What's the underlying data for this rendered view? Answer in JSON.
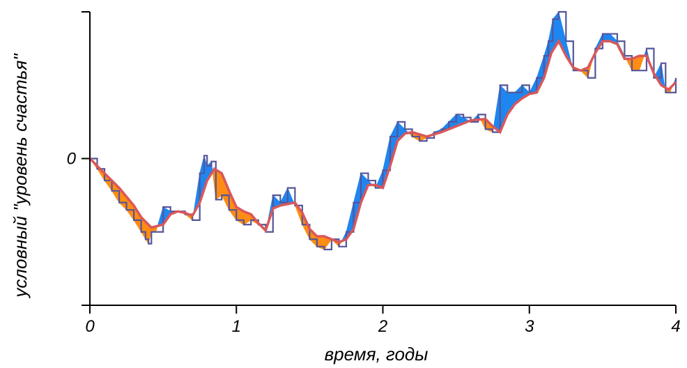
{
  "chart_data": {
    "type": "area",
    "xlabel": "время, годы",
    "ylabel": "условный \"уровень счастья\"",
    "x_ticks": [
      0,
      1,
      2,
      3,
      4
    ],
    "y_ticks": [
      0
    ],
    "xlim": [
      0,
      4
    ],
    "ylim": [
      -1,
      1
    ],
    "grid": false,
    "colors": {
      "above": "#1f86f0",
      "below": "#ff8c14",
      "raw_line": "#555599",
      "smooth_line": "#d9575a",
      "axis": "#000000"
    },
    "series": [
      {
        "x": [
          0,
          0.05,
          0.1,
          0.15,
          0.2,
          0.25,
          0.3,
          0.35,
          0.38,
          0.4,
          0.42,
          0.45,
          0.5,
          0.55,
          0.6,
          0.65,
          0.7,
          0.75,
          0.78,
          0.8,
          0.83,
          0.86,
          0.9,
          0.95,
          1.0,
          1.05,
          1.1,
          1.15,
          1.2,
          1.25,
          1.3,
          1.35,
          1.4,
          1.45,
          1.5,
          1.55,
          1.6,
          1.65,
          1.7,
          1.75,
          1.8,
          1.85,
          1.9,
          1.95,
          2.0,
          2.05,
          2.1,
          2.15,
          2.2,
          2.25,
          2.3,
          2.35,
          2.4,
          2.45,
          2.5,
          2.55,
          2.6,
          2.65,
          2.7,
          2.75,
          2.8,
          2.85,
          2.9,
          2.95,
          3.0,
          3.05,
          3.1,
          3.13,
          3.16,
          3.2,
          3.25,
          3.3,
          3.35,
          3.4,
          3.45,
          3.5,
          3.55,
          3.6,
          3.65,
          3.7,
          3.75,
          3.8,
          3.85,
          3.9,
          3.93,
          3.96,
          4.0
        ],
        "y": [
          0.0,
          -0.07,
          -0.15,
          -0.22,
          -0.3,
          -0.35,
          -0.42,
          -0.5,
          -0.55,
          -0.58,
          -0.5,
          -0.5,
          -0.33,
          -0.36,
          -0.36,
          -0.38,
          -0.42,
          -0.1,
          0.02,
          -0.05,
          -0.02,
          -0.28,
          -0.25,
          -0.35,
          -0.42,
          -0.45,
          -0.42,
          -0.45,
          -0.5,
          -0.25,
          -0.3,
          -0.2,
          -0.32,
          -0.45,
          -0.55,
          -0.6,
          -0.62,
          -0.55,
          -0.6,
          -0.5,
          -0.3,
          -0.1,
          -0.15,
          -0.2,
          -0.08,
          0.15,
          0.25,
          0.2,
          0.15,
          0.12,
          0.14,
          0.18,
          0.2,
          0.25,
          0.3,
          0.28,
          0.25,
          0.3,
          0.2,
          0.18,
          0.5,
          0.45,
          0.45,
          0.5,
          0.45,
          0.55,
          0.7,
          0.8,
          0.95,
          1.0,
          0.8,
          0.6,
          0.6,
          0.55,
          0.75,
          0.85,
          0.85,
          0.8,
          0.7,
          0.6,
          0.6,
          0.75,
          0.55,
          0.65,
          0.45,
          0.45,
          0.55
        ]
      },
      {
        "x": [
          0,
          0.1,
          0.2,
          0.3,
          0.35,
          0.42,
          0.5,
          0.55,
          0.6,
          0.65,
          0.7,
          0.75,
          0.8,
          0.85,
          0.9,
          0.95,
          1.0,
          1.05,
          1.1,
          1.15,
          1.2,
          1.25,
          1.3,
          1.35,
          1.4,
          1.45,
          1.5,
          1.55,
          1.6,
          1.65,
          1.7,
          1.75,
          1.8,
          1.85,
          1.9,
          1.95,
          2.0,
          2.05,
          2.1,
          2.15,
          2.2,
          2.3,
          2.4,
          2.5,
          2.6,
          2.7,
          2.75,
          2.8,
          2.85,
          2.9,
          2.95,
          3.0,
          3.05,
          3.1,
          3.15,
          3.2,
          3.25,
          3.3,
          3.35,
          3.4,
          3.45,
          3.5,
          3.55,
          3.6,
          3.65,
          3.7,
          3.75,
          3.8,
          3.85,
          3.9,
          3.95,
          4.0
        ],
        "y": [
          0.0,
          -0.1,
          -0.2,
          -0.32,
          -0.4,
          -0.47,
          -0.45,
          -0.38,
          -0.36,
          -0.37,
          -0.39,
          -0.3,
          -0.15,
          -0.07,
          -0.1,
          -0.22,
          -0.33,
          -0.36,
          -0.38,
          -0.44,
          -0.49,
          -0.34,
          -0.32,
          -0.31,
          -0.3,
          -0.37,
          -0.48,
          -0.53,
          -0.53,
          -0.55,
          -0.57,
          -0.55,
          -0.48,
          -0.3,
          -0.18,
          -0.18,
          -0.2,
          -0.05,
          0.12,
          0.17,
          0.18,
          0.15,
          0.18,
          0.22,
          0.26,
          0.27,
          0.22,
          0.18,
          0.3,
          0.37,
          0.41,
          0.44,
          0.45,
          0.55,
          0.72,
          0.8,
          0.7,
          0.62,
          0.6,
          0.62,
          0.72,
          0.8,
          0.8,
          0.78,
          0.68,
          0.68,
          0.7,
          0.7,
          0.58,
          0.5,
          0.47,
          0.52
        ]
      }
    ]
  }
}
